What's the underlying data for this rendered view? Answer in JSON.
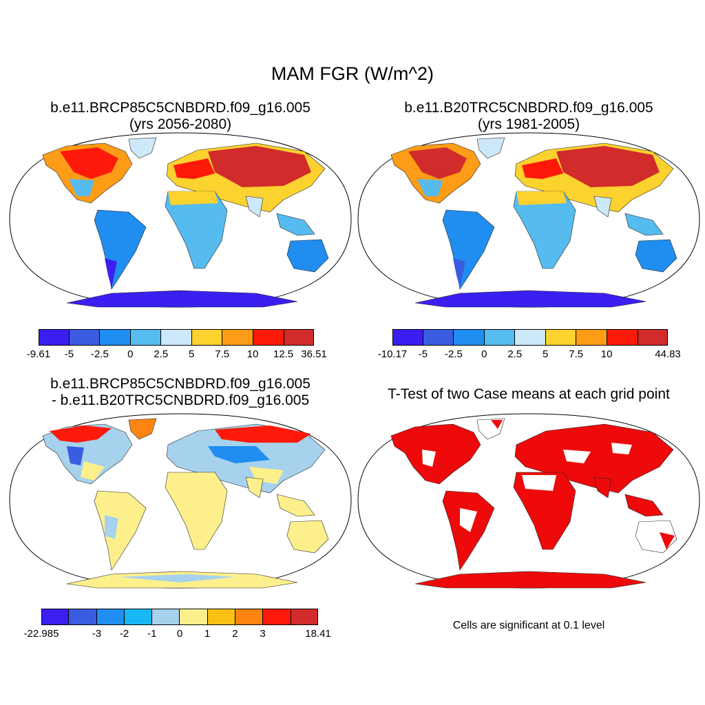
{
  "main_title": "MAM FGR (W/m^2)",
  "panels": {
    "p1": {
      "title_line1": "b.e11.BRCP85C5CNBDRD.f09_g16.005",
      "title_line2": "(yrs 2056-2080)"
    },
    "p2": {
      "title_line1": "b.e11.B20TRC5CNBDRD.f09_g16.005",
      "title_line2": "(yrs 1981-2005)"
    },
    "p3": {
      "title_line1": "b.e11.BRCP85C5CNBDRD.f09_g16.005",
      "title_line2": "- b.e11.B20TRC5CNBDRD.f09_g16.005"
    },
    "p4": {
      "title_line1": "T-Test of two Case means at each grid point",
      "note": "Cells are significant at 0.1 level"
    }
  },
  "colorbars": {
    "cb1": {
      "colors": [
        "#3b1ff0",
        "#3a5ce0",
        "#1f8ef0",
        "#56bbee",
        "#cde8f8",
        "#fcd22e",
        "#fd9c16",
        "#fd1a0a",
        "#d22b2b"
      ],
      "labels": [
        "-9.61",
        "-5",
        "-2.5",
        "0",
        "2.5",
        "5",
        "7.5",
        "10",
        "12.5",
        "36.51"
      ]
    },
    "cb2": {
      "colors": [
        "#3b1ff0",
        "#3a5ce0",
        "#1f8ef0",
        "#56bbee",
        "#cde8f8",
        "#fcd22e",
        "#fd9c16",
        "#fd1a0a",
        "#d22b2b"
      ],
      "labels": [
        "-10.17",
        "-5",
        "-2.5",
        "0",
        "2.5",
        "5",
        "7.5",
        "10",
        "",
        "44.83"
      ]
    },
    "cb3": {
      "colors": [
        "#3b1ff0",
        "#3a5ce0",
        "#1f8ef0",
        "#17b8f4",
        "#a6d2ee",
        "#fdf08c",
        "#fcc014",
        "#fd8410",
        "#fd1a0a",
        "#d22b2b"
      ],
      "labels": [
        "-22.985",
        "",
        "-3",
        "-2",
        "-1",
        "0",
        "1",
        "2",
        "3",
        "",
        "18.41"
      ]
    }
  },
  "map_colors": {
    "ocean": "#ffffff",
    "sig": "#ee0a0a"
  }
}
